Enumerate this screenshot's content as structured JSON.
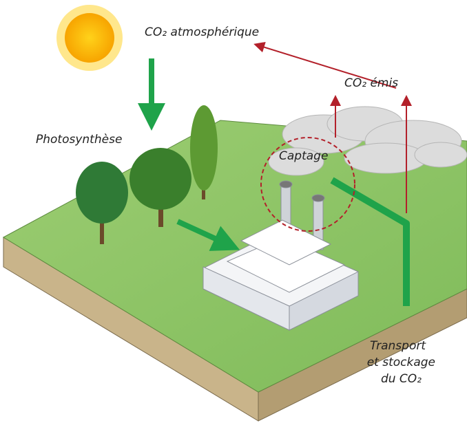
{
  "labels": {
    "atmospheric": "CO₂ atmosphérique",
    "emitted": "CO₂ émis",
    "photosynthesis": "Photosynthèse",
    "capture": "Captage",
    "transport": [
      "Transport",
      "et stockage",
      "du CO₂"
    ]
  }
}
